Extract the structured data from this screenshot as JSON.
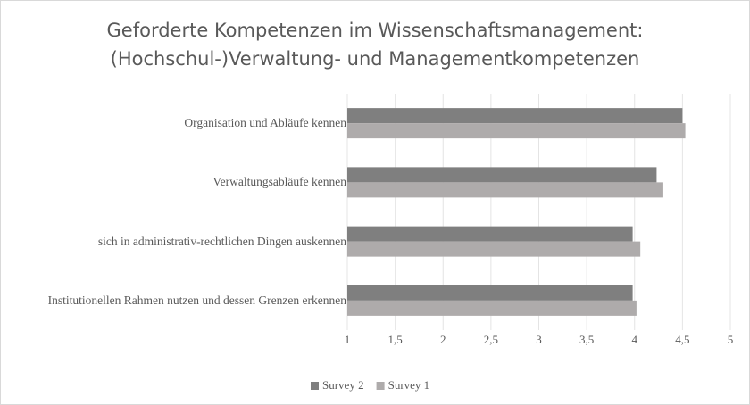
{
  "chart_data": {
    "type": "hbar",
    "title": "Geforderte Kompetenzen im Wissenschaftsmanagement: (Hochschul-)Verwaltung- und Managementkompetenzen",
    "categories": [
      "Organisation und Abläufe kennen",
      "Verwaltungsabläufe kennen",
      "sich in administrativ-rechtlichen Dingen auskennen",
      "Institutionellen Rahmen nutzen und dessen Grenzen erkennen"
    ],
    "series": [
      {
        "name": "Survey 2",
        "color": "#7f7f7f",
        "values": [
          4.5,
          4.23,
          3.98,
          3.98
        ]
      },
      {
        "name": "Survey 1",
        "color": "#aeabab",
        "values": [
          4.53,
          4.3,
          4.06,
          4.02
        ]
      }
    ],
    "xlim": [
      1,
      5
    ],
    "xticks": [
      1,
      {
        "value": 1.5,
        "label": "1,5"
      },
      2,
      {
        "value": 2.5,
        "label": "2,5"
      },
      3,
      {
        "value": 3.5,
        "label": "3,5"
      },
      4,
      {
        "value": 4.5,
        "label": "4,5"
      },
      5
    ],
    "grid": true,
    "legend": "bottom"
  }
}
